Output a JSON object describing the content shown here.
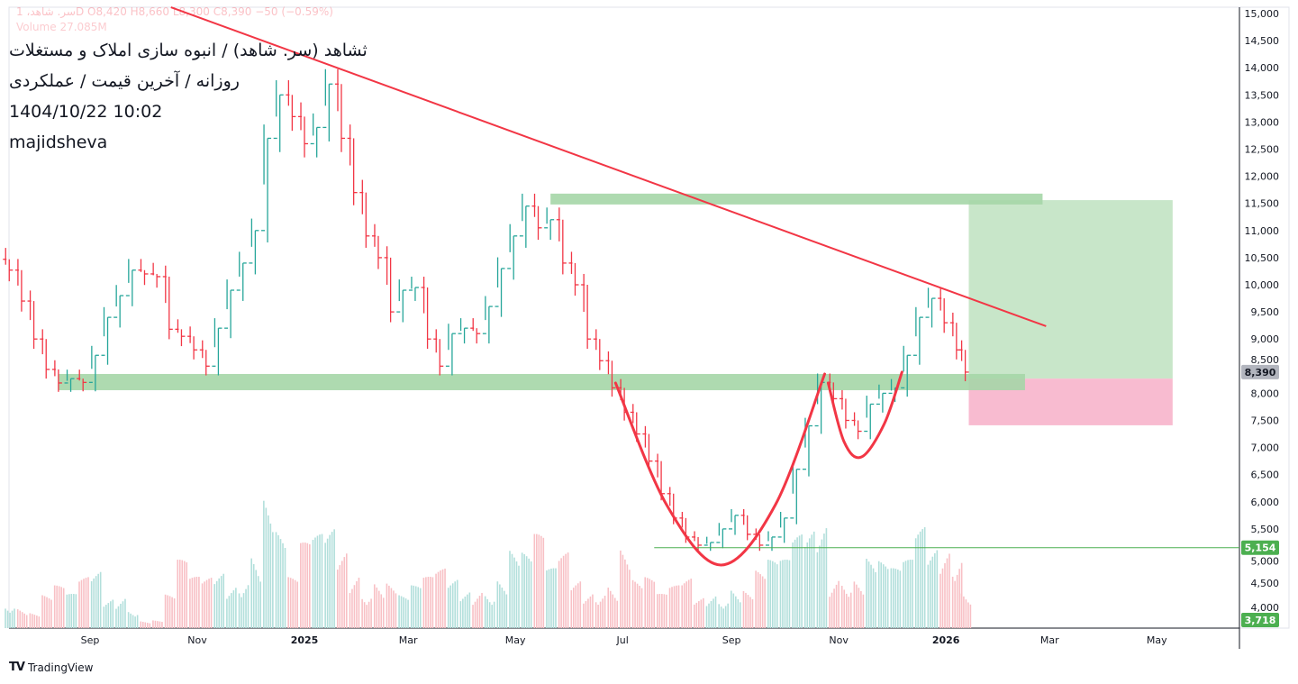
{
  "header": {
    "ohlc_line": "سر. شاهد، 1D  O8,420  H8,660  L8,300  C8,390  −50 (−0.59%)",
    "volume_line": "Volume 27.085M",
    "title": "ثشاهد (سر. شاهد) / انبوه سازی املاک و مستغلات",
    "subtitle": "روزانه / آخرین قیمت / عملکردی",
    "timestamp": "1404/10/22 10:02",
    "author": "majidsheva"
  },
  "branding": {
    "logo": "TV",
    "name": "TradingView"
  },
  "colors": {
    "up": "#26a69a",
    "down": "#f23645",
    "trendline": "#f23645",
    "zone": "#a5d6a7",
    "target": "#c8e6c9",
    "stop": "#f8bbd0",
    "support_line": "#4caf50"
  },
  "chart_data": {
    "type": "ohlc",
    "ylim": [
      4000,
      15000
    ],
    "y_ticks": [
      "15,000",
      "14,500",
      "14,000",
      "13,500",
      "13,000",
      "12,500",
      "12,000",
      "11,500",
      "11,000",
      "10,500",
      "10,000",
      "9,500",
      "9,000",
      "8,500",
      "8,000",
      "7,500",
      "7,000",
      "6,500",
      "6,000",
      "5,500",
      "5,000",
      "4,500",
      "4,000"
    ],
    "x_ticks": [
      {
        "label": "Sep",
        "date": "2024-09-01"
      },
      {
        "label": "Nov",
        "date": "2024-11-01"
      },
      {
        "label": "2025",
        "date": "2025-01-01",
        "bold": true
      },
      {
        "label": "Mar",
        "date": "2025-03-01"
      },
      {
        "label": "May",
        "date": "2025-05-01"
      },
      {
        "label": "Jul",
        "date": "2025-07-01"
      },
      {
        "label": "Sep",
        "date": "2025-09-01"
      },
      {
        "label": "Nov",
        "date": "2025-11-01"
      },
      {
        "label": "2026",
        "date": "2026-01-01",
        "bold": true
      },
      {
        "label": "Mar",
        "date": "2026-03-01"
      },
      {
        "label": "May",
        "date": "2026-05-01"
      }
    ],
    "dates": [
      "2024-07-17",
      "2024-07-24",
      "2024-07-31",
      "2024-08-07",
      "2024-08-14",
      "2024-08-21",
      "2024-08-28",
      "2024-09-04",
      "2024-09-11",
      "2024-09-18",
      "2024-09-25",
      "2024-10-02",
      "2024-10-09",
      "2024-10-16",
      "2024-10-23",
      "2024-10-30",
      "2024-11-06",
      "2024-11-13",
      "2024-11-20",
      "2024-11-27",
      "2024-12-04",
      "2024-12-11",
      "2024-12-18",
      "2024-12-25",
      "2025-01-01",
      "2025-01-08",
      "2025-01-15",
      "2025-01-22",
      "2025-01-29",
      "2025-02-05",
      "2025-02-12",
      "2025-02-19",
      "2025-02-26",
      "2025-03-05",
      "2025-03-12",
      "2025-03-19",
      "2025-03-26",
      "2025-04-02",
      "2025-04-09",
      "2025-04-16",
      "2025-04-23",
      "2025-04-30",
      "2025-05-07",
      "2025-05-14",
      "2025-05-21",
      "2025-05-28",
      "2025-06-04",
      "2025-06-11",
      "2025-06-18",
      "2025-06-25",
      "2025-07-02",
      "2025-07-09",
      "2025-07-16",
      "2025-07-23",
      "2025-07-30",
      "2025-08-06",
      "2025-08-13",
      "2025-08-20",
      "2025-08-27",
      "2025-09-03",
      "2025-09-10",
      "2025-09-17",
      "2025-09-24",
      "2025-10-01",
      "2025-10-08",
      "2025-10-15",
      "2025-10-22",
      "2025-10-29",
      "2025-11-05",
      "2025-11-12",
      "2025-11-19",
      "2025-11-26",
      "2025-12-03",
      "2025-12-10",
      "2025-12-17",
      "2025-12-24",
      "2025-12-31",
      "2026-01-07",
      "2026-01-12"
    ],
    "close": [
      10270,
      9700,
      9000,
      8440,
      8190,
      8270,
      8200,
      8700,
      9400,
      9800,
      10270,
      10200,
      10150,
      9180,
      9050,
      8800,
      8500,
      9200,
      9900,
      10400,
      11000,
      12700,
      13500,
      13100,
      12600,
      12900,
      13700,
      12700,
      11700,
      10900,
      10500,
      9500,
      9900,
      9950,
      9000,
      8500,
      9100,
      9200,
      9100,
      9600,
      10300,
      10900,
      11450,
      11050,
      11200,
      10400,
      10000,
      9000,
      8600,
      8100,
      7650,
      7250,
      6750,
      6150,
      5700,
      5350,
      5200,
      5250,
      5500,
      5750,
      5400,
      5200,
      5350,
      5700,
      6600,
      7400,
      8200,
      7900,
      7500,
      7300,
      7800,
      8000,
      8100,
      8700,
      9400,
      9750,
      9300,
      8800,
      8390
    ],
    "volume_relative": [
      0.2,
      0.15,
      0.1,
      0.2,
      0.25,
      0.2,
      0.3,
      0.35,
      0.2,
      0.25,
      0.15,
      0.05,
      0.05,
      0.2,
      0.4,
      0.3,
      0.3,
      0.35,
      0.3,
      0.4,
      0.6,
      0.9,
      0.6,
      0.3,
      0.5,
      0.55,
      0.6,
      0.5,
      0.4,
      0.3,
      0.35,
      0.3,
      0.2,
      0.25,
      0.3,
      0.35,
      0.3,
      0.25,
      0.3,
      0.3,
      0.35,
      0.5,
      0.45,
      0.55,
      0.35,
      0.45,
      0.3,
      0.25,
      0.3,
      0.35,
      0.55,
      0.3,
      0.3,
      0.2,
      0.25,
      0.3,
      0.2,
      0.25,
      0.25,
      0.3,
      0.25,
      0.35,
      0.4,
      0.4,
      0.55,
      0.6,
      0.7,
      0.4,
      0.4,
      0.35,
      0.45,
      0.4,
      0.35,
      0.4,
      0.6,
      0.5,
      0.55,
      0.6,
      0.3
    ],
    "last_price": {
      "label": "8,390",
      "value": 8390
    },
    "support_line": {
      "label": "5,154",
      "value": 5154,
      "from": "2025-07-19"
    },
    "volume_marker": {
      "label": "3,718",
      "value": 3718
    },
    "trendline": [
      [
        "2024-10-17",
        15115
      ],
      [
        "2026-02-27",
        9236
      ]
    ],
    "resistance_zone": {
      "from": "2025-05-21",
      "to": "2026-02-25",
      "low": 11480,
      "high": 11680
    },
    "support_zone": {
      "from": "2024-08-14",
      "to": "2026-02-15",
      "low": 8057,
      "high": 8356
    },
    "long_position": {
      "from": "2026-01-14",
      "to": "2026-05-10",
      "entry": 8270,
      "target": 11560,
      "stop": 7410
    },
    "cup": [
      [
        "2025-06-27",
        8190
      ],
      [
        "2025-07-26",
        5947
      ],
      [
        "2025-08-26",
        4834
      ],
      [
        "2025-09-26",
        5947
      ],
      [
        "2025-10-24",
        8356
      ]
    ],
    "handle": [
      [
        "2025-10-26",
        8190
      ],
      [
        "2025-11-04",
        7110
      ],
      [
        "2025-11-14",
        6827
      ],
      [
        "2025-11-27",
        7442
      ],
      [
        "2025-12-07",
        8390
      ]
    ]
  }
}
